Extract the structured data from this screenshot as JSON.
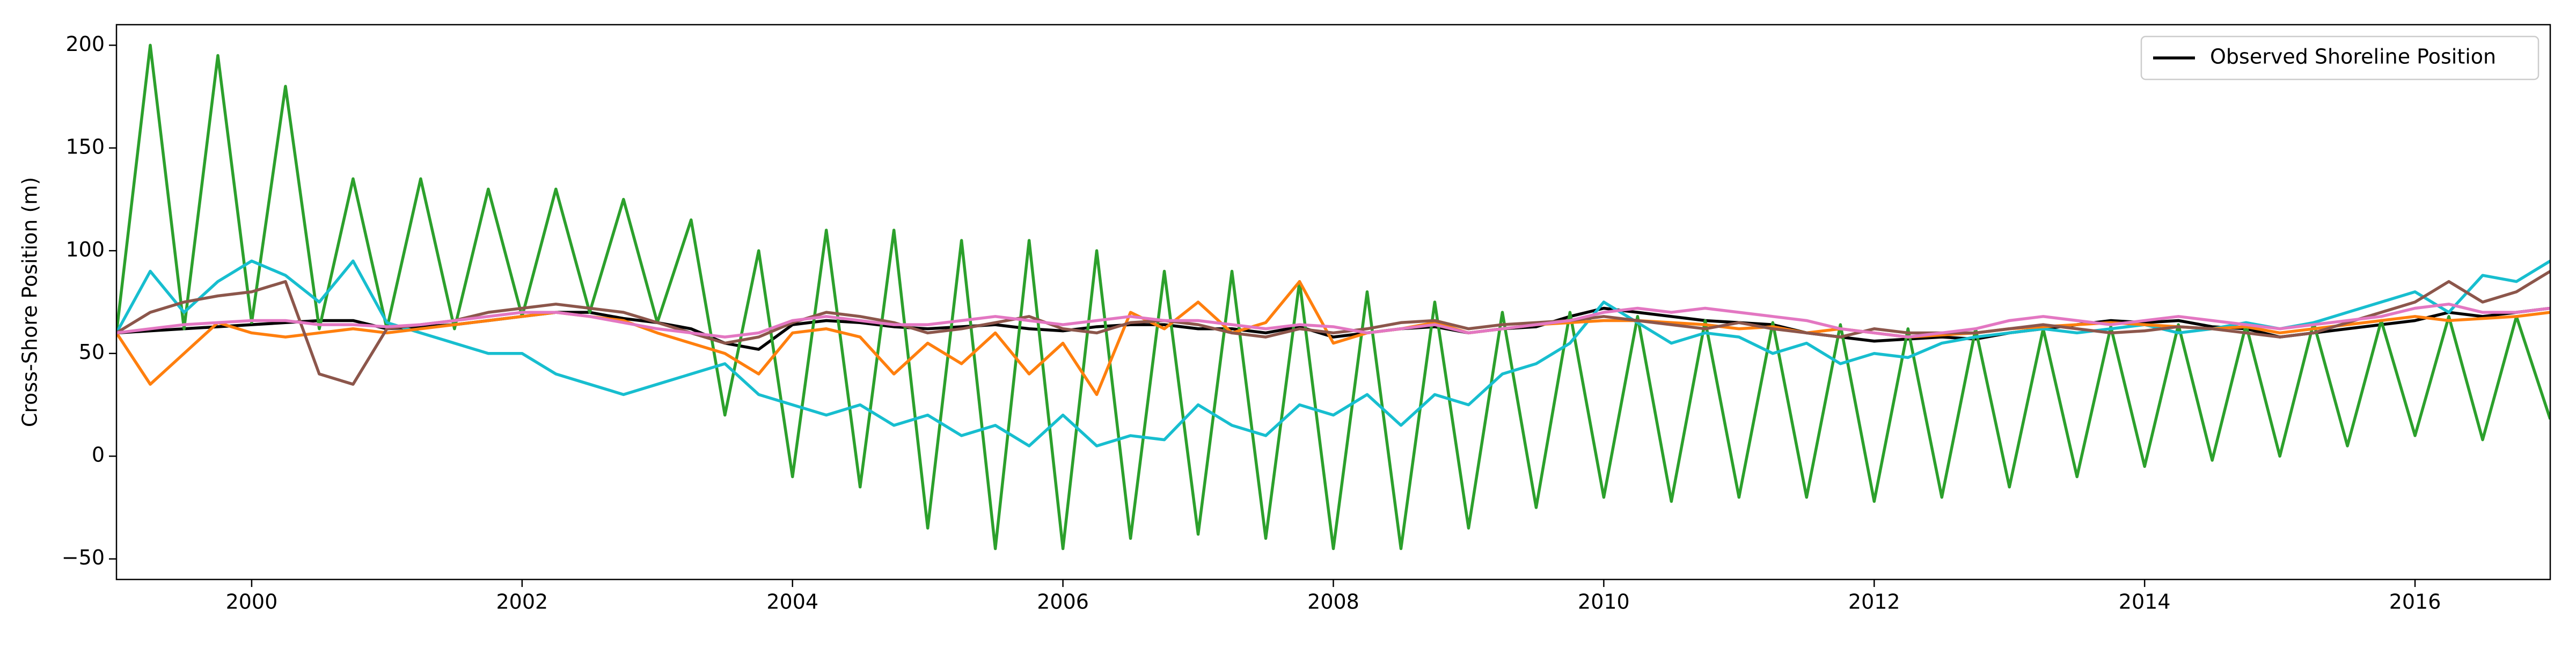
{
  "chart_data": {
    "type": "line",
    "ylabel": "Cross-Shore Position (m)",
    "xlim": [
      1999,
      2017
    ],
    "xticks": [
      2000,
      2002,
      2004,
      2006,
      2008,
      2010,
      2012,
      2014,
      2016
    ],
    "ylim": [
      -60,
      210
    ],
    "yticks": [
      {
        "value": -50,
        "label": "−50"
      },
      0,
      50,
      100,
      150,
      200
    ],
    "legend": "upper right",
    "x": [
      1999,
      1999.25,
      1999.5,
      1999.75,
      2000,
      2000.25,
      2000.5,
      2000.75,
      2001,
      2001.25,
      2001.5,
      2001.75,
      2002,
      2002.25,
      2002.5,
      2002.75,
      2003,
      2003.25,
      2003.5,
      2003.75,
      2004,
      2004.25,
      2004.5,
      2004.75,
      2005,
      2005.25,
      2005.5,
      2005.75,
      2006,
      2006.25,
      2006.5,
      2006.75,
      2007,
      2007.25,
      2007.5,
      2007.75,
      2008,
      2008.25,
      2008.5,
      2008.75,
      2009,
      2009.25,
      2009.5,
      2009.75,
      2010,
      2010.25,
      2010.5,
      2010.75,
      2011,
      2011.25,
      2011.5,
      2011.75,
      2012,
      2012.25,
      2012.5,
      2012.75,
      2013,
      2013.25,
      2013.5,
      2013.75,
      2014,
      2014.25,
      2014.5,
      2014.75,
      2015,
      2015.25,
      2015.5,
      2015.75,
      2016,
      2016.25,
      2016.5,
      2016.75,
      2017
    ],
    "series": [
      {
        "name": "Observed Shoreline Position",
        "color": "#000000",
        "values": [
          60,
          61,
          62,
          63,
          64,
          65,
          66,
          66,
          62,
          63,
          64,
          66,
          68,
          70,
          70,
          67,
          65,
          62,
          55,
          52,
          64,
          66,
          65,
          63,
          62,
          63,
          64,
          62,
          61,
          63,
          64,
          64,
          62,
          62,
          60,
          63,
          58,
          60,
          62,
          63,
          60,
          62,
          63,
          68,
          72,
          70,
          68,
          66,
          65,
          64,
          60,
          58,
          56,
          57,
          58,
          57,
          60,
          62,
          64,
          66,
          65,
          66,
          63,
          62,
          58,
          60,
          62,
          64,
          66,
          70,
          68,
          70,
          72
        ]
      },
      {
        "color": "#2ca02c",
        "values": [
          60,
          200,
          62,
          195,
          65,
          180,
          62,
          135,
          62,
          135,
          62,
          130,
          68,
          130,
          70,
          125,
          65,
          115,
          20,
          100,
          -10,
          110,
          -15,
          110,
          -35,
          105,
          -45,
          105,
          -45,
          100,
          -40,
          90,
          -38,
          90,
          -40,
          85,
          -45,
          80,
          -45,
          75,
          -35,
          70,
          -25,
          70,
          -20,
          68,
          -22,
          66,
          -20,
          65,
          -20,
          64,
          -22,
          62,
          -20,
          62,
          -15,
          62,
          -10,
          63,
          -5,
          64,
          -2,
          64,
          0,
          65,
          5,
          66,
          10,
          68,
          8,
          68,
          18
        ]
      },
      {
        "color": "#17becf",
        "values": [
          60,
          90,
          70,
          85,
          95,
          88,
          75,
          95,
          65,
          60,
          55,
          50,
          50,
          40,
          35,
          30,
          35,
          40,
          45,
          30,
          25,
          20,
          25,
          15,
          20,
          10,
          15,
          5,
          20,
          5,
          10,
          8,
          25,
          15,
          10,
          25,
          20,
          30,
          15,
          30,
          25,
          40,
          45,
          55,
          75,
          65,
          55,
          60,
          58,
          50,
          55,
          45,
          50,
          48,
          55,
          58,
          60,
          62,
          60,
          62,
          64,
          60,
          62,
          65,
          62,
          65,
          70,
          75,
          80,
          70,
          88,
          85,
          95
        ]
      },
      {
        "color": "#ff7f0e",
        "values": [
          60,
          35,
          50,
          65,
          60,
          58,
          60,
          62,
          60,
          62,
          64,
          66,
          68,
          70,
          68,
          66,
          60,
          55,
          50,
          40,
          60,
          62,
          58,
          40,
          55,
          45,
          60,
          40,
          55,
          30,
          70,
          62,
          75,
          60,
          65,
          85,
          55,
          60,
          62,
          65,
          60,
          62,
          64,
          65,
          66,
          66,
          65,
          64,
          62,
          63,
          60,
          62,
          60,
          58,
          59,
          60,
          62,
          63,
          64,
          65,
          64,
          63,
          62,
          63,
          60,
          62,
          64,
          66,
          68,
          66,
          67,
          68,
          70
        ]
      },
      {
        "color": "#8c564b",
        "values": [
          60,
          70,
          75,
          78,
          80,
          85,
          40,
          35,
          62,
          64,
          66,
          70,
          72,
          74,
          72,
          70,
          65,
          60,
          55,
          58,
          65,
          70,
          68,
          65,
          60,
          62,
          65,
          68,
          62,
          60,
          65,
          66,
          64,
          60,
          58,
          62,
          60,
          62,
          65,
          66,
          62,
          64,
          65,
          66,
          68,
          66,
          64,
          62,
          65,
          62,
          60,
          58,
          62,
          60,
          60,
          60,
          62,
          64,
          62,
          60,
          61,
          63,
          62,
          60,
          58,
          60,
          65,
          70,
          75,
          85,
          75,
          80,
          90
        ]
      },
      {
        "color": "#e377c2",
        "values": [
          60,
          62,
          64,
          65,
          66,
          66,
          64,
          64,
          63,
          64,
          66,
          68,
          70,
          70,
          68,
          65,
          62,
          60,
          58,
          60,
          66,
          68,
          66,
          64,
          64,
          66,
          68,
          66,
          64,
          66,
          68,
          66,
          66,
          64,
          62,
          64,
          63,
          60,
          62,
          64,
          60,
          62,
          64,
          66,
          70,
          72,
          70,
          72,
          70,
          68,
          66,
          62,
          60,
          58,
          60,
          62,
          66,
          68,
          66,
          64,
          66,
          68,
          66,
          64,
          62,
          64,
          66,
          68,
          72,
          74,
          70,
          70,
          72
        ]
      }
    ]
  }
}
